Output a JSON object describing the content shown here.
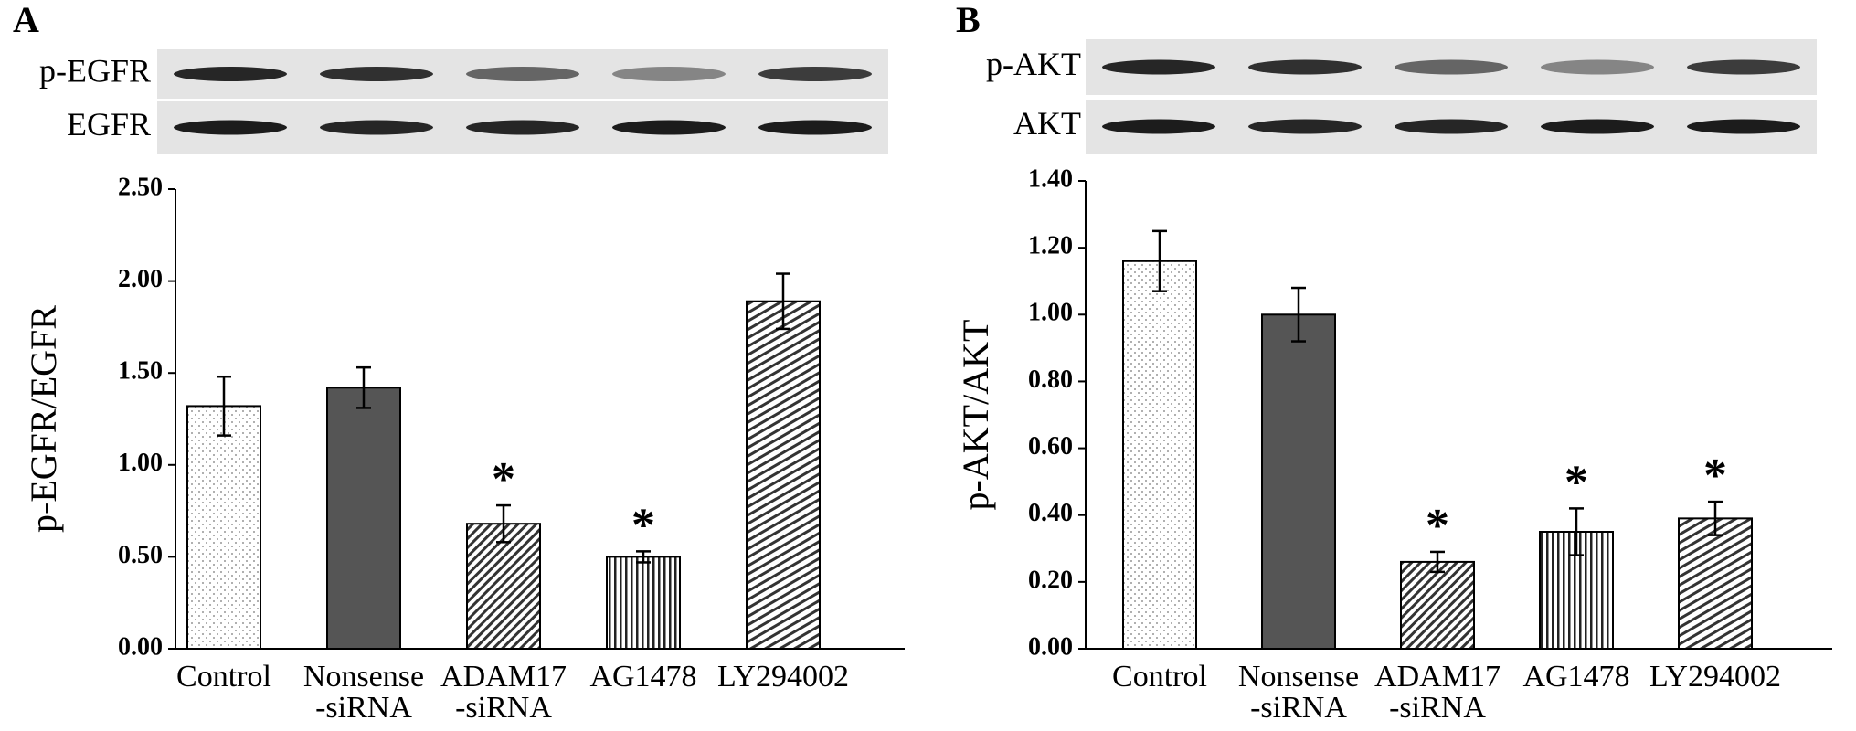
{
  "chart_data": [
    {
      "type": "bar",
      "panel_label": "A",
      "blot_labels": [
        "p-EGFR",
        "EGFR"
      ],
      "y_label": "p-EGFR/EGFR",
      "categories": [
        "Control",
        "Nonsense\n-siRNA",
        "ADAM17\n-siRNA",
        "AG1478",
        "LY294002"
      ],
      "values": [
        1.32,
        1.42,
        0.68,
        0.5,
        1.89
      ],
      "errors": [
        0.16,
        0.11,
        0.1,
        0.03,
        0.15
      ],
      "fills": [
        "dots",
        "dark",
        "hatch-diagonal",
        "hatch-vertical",
        "hatch-wave"
      ],
      "annotations": [
        {
          "index": 2,
          "text": "*"
        },
        {
          "index": 3,
          "text": "*"
        }
      ],
      "ylim": [
        0,
        2.5
      ],
      "yticks": [
        {
          "value": 0,
          "label": "0.00"
        },
        {
          "value": 0.5,
          "label": "0.50"
        },
        {
          "value": 1,
          "label": "1.00"
        },
        {
          "value": 1.5,
          "label": "1.50"
        },
        {
          "value": 2,
          "label": "2.00"
        },
        {
          "value": 2.5,
          "label": "2.50"
        }
      ]
    },
    {
      "type": "bar",
      "panel_label": "B",
      "blot_labels": [
        "p-AKT",
        "AKT"
      ],
      "y_label": "p-AKT/AKT",
      "categories": [
        "Control",
        "Nonsense\n-siRNA",
        "ADAM17\n-siRNA",
        "AG1478",
        "LY294002"
      ],
      "values": [
        1.16,
        1.0,
        0.26,
        0.35,
        0.39
      ],
      "errors": [
        0.09,
        0.08,
        0.03,
        0.07,
        0.05
      ],
      "fills": [
        "dots",
        "dark",
        "hatch-diagonal",
        "hatch-vertical",
        "hatch-wave"
      ],
      "annotations": [
        {
          "index": 2,
          "text": "*"
        },
        {
          "index": 3,
          "text": "*"
        },
        {
          "index": 4,
          "text": "*"
        }
      ],
      "ylim": [
        0,
        1.4
      ],
      "yticks": [
        {
          "value": 0,
          "label": "0.00"
        },
        {
          "value": 0.2,
          "label": "0.20"
        },
        {
          "value": 0.4,
          "label": "0.40"
        },
        {
          "value": 0.6,
          "label": "0.60"
        },
        {
          "value": 0.8,
          "label": "0.80"
        },
        {
          "value": 1,
          "label": "1.00"
        },
        {
          "value": 1.2,
          "label": "1.20"
        },
        {
          "value": 1.4,
          "label": "1.40"
        }
      ]
    }
  ]
}
